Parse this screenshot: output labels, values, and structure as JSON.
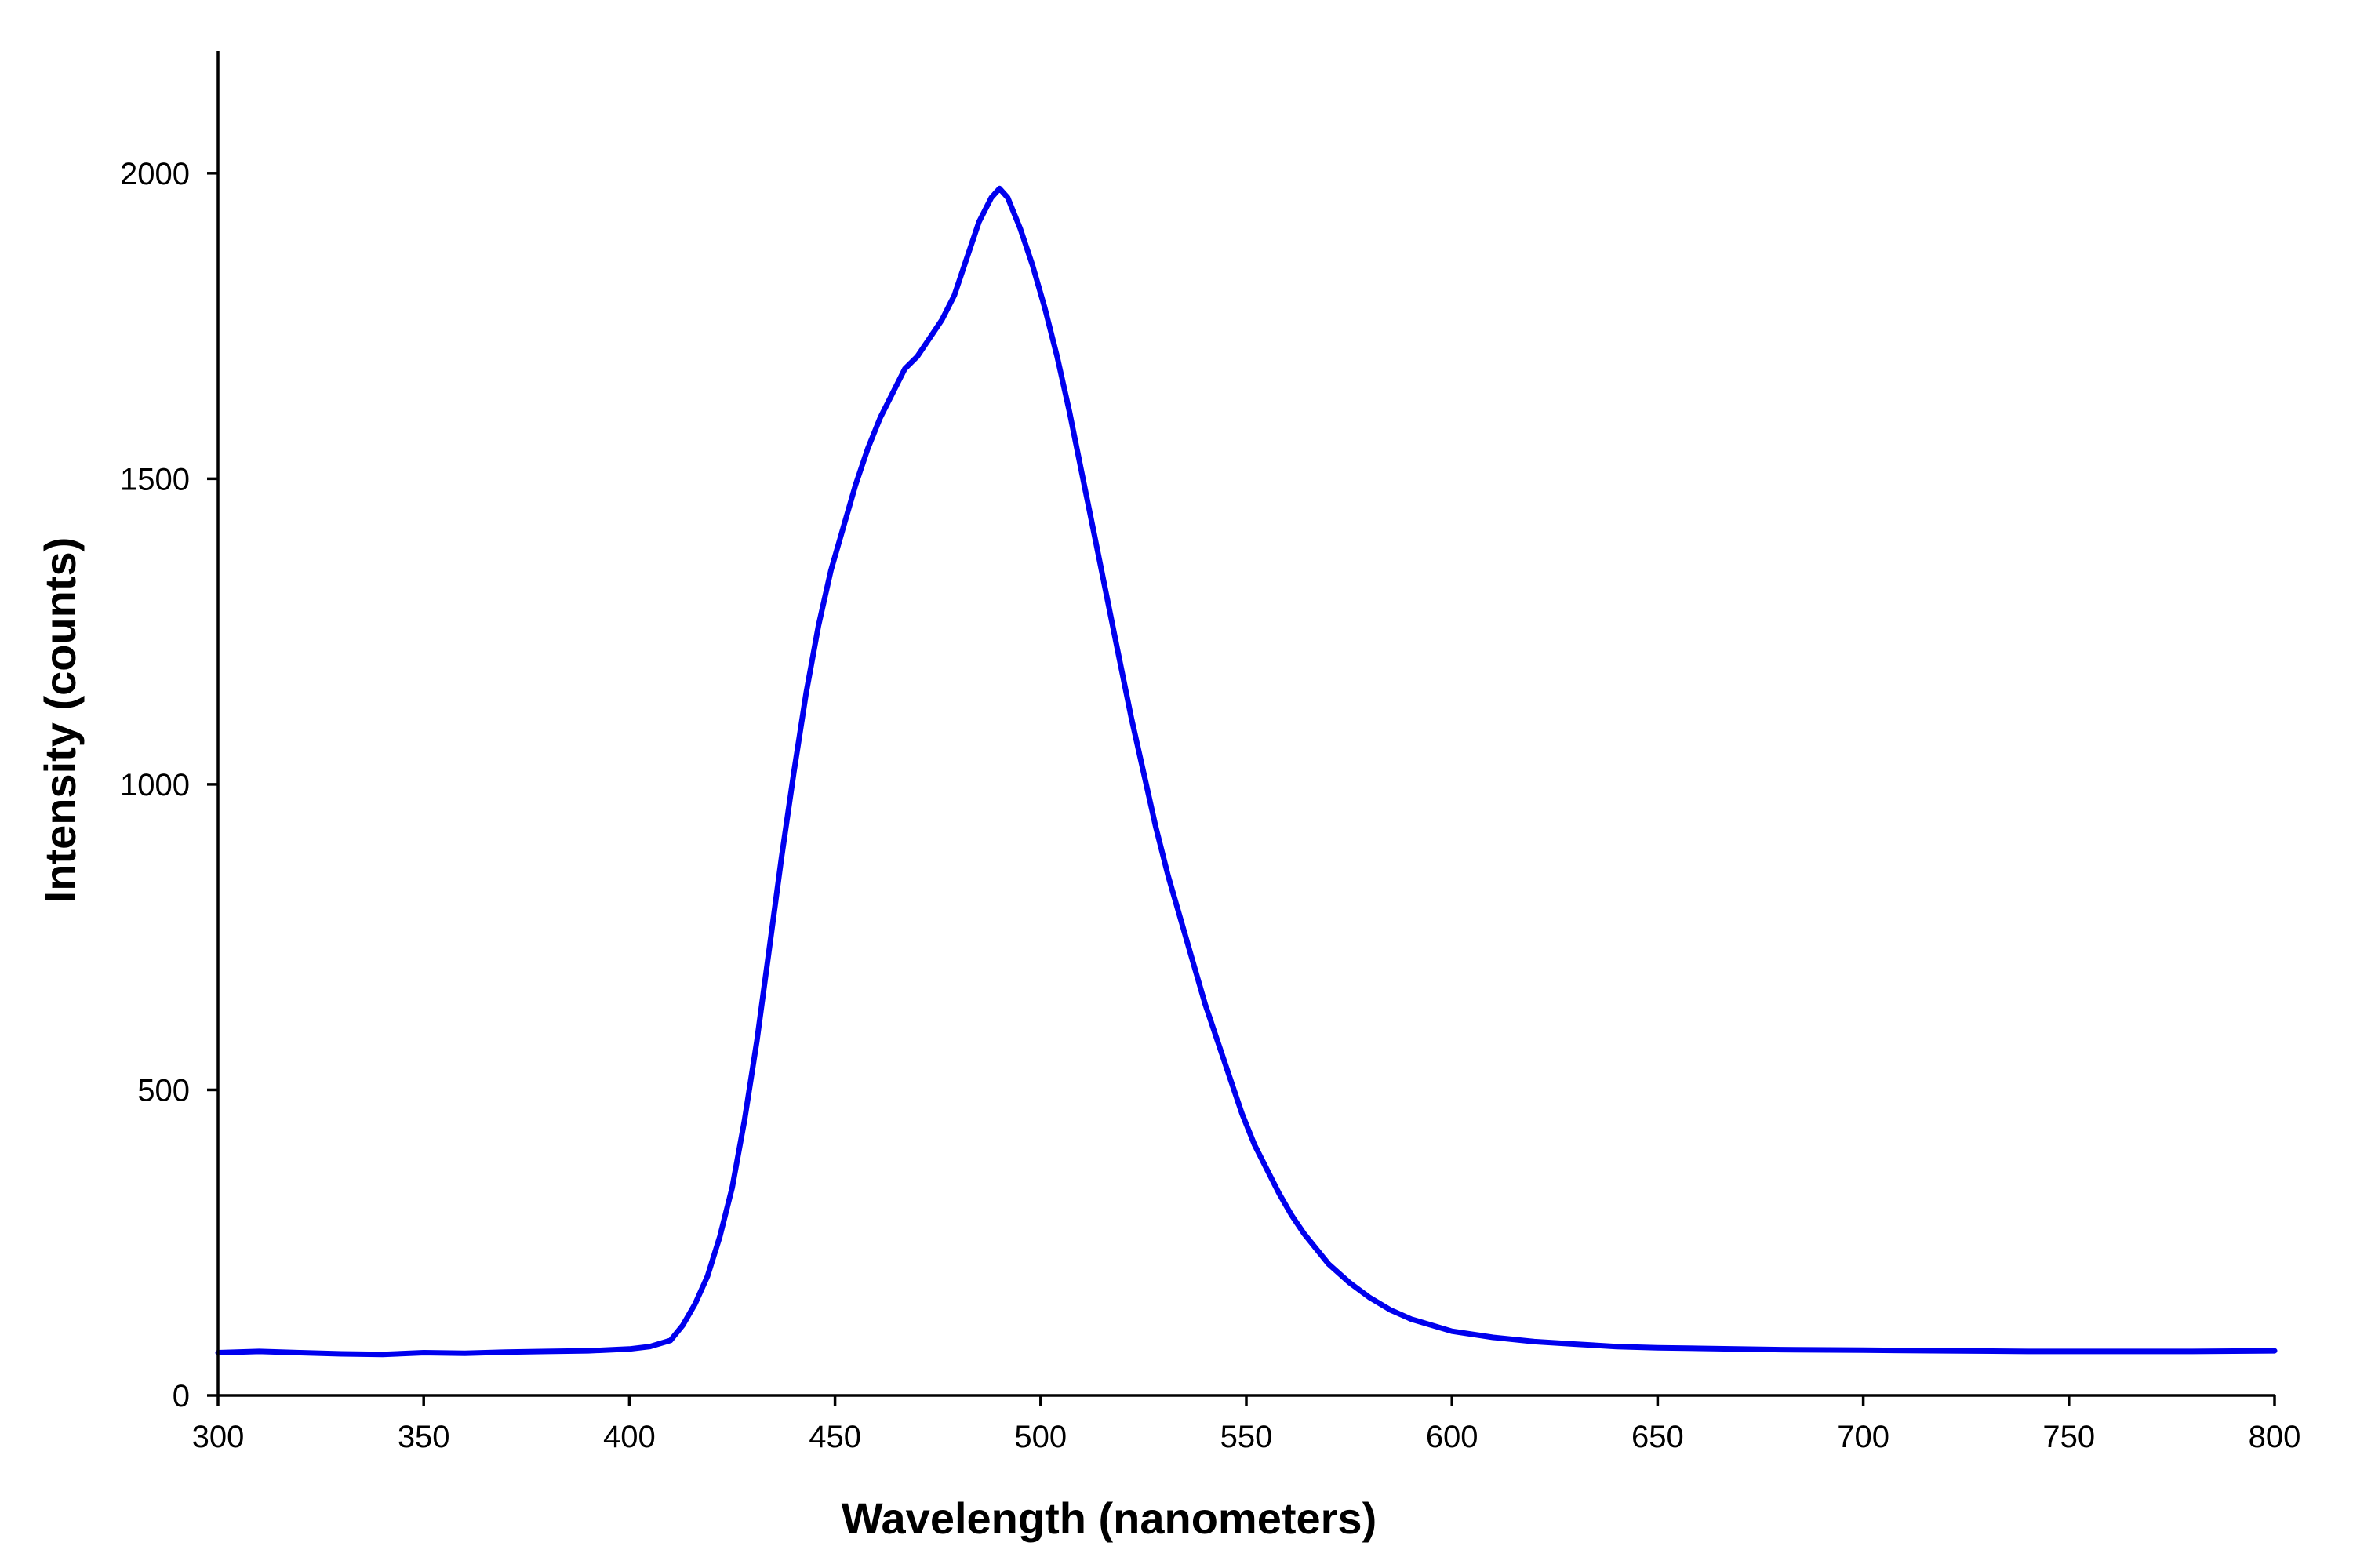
{
  "chart_data": {
    "type": "line",
    "title": "",
    "xlabel": "Wavelength (nanometers)",
    "ylabel": "Intensity (counts)",
    "xlim": [
      300,
      800
    ],
    "ylim": [
      0,
      2200
    ],
    "x_ticks": [
      300,
      350,
      400,
      450,
      500,
      550,
      600,
      650,
      700,
      750,
      800
    ],
    "y_ticks": [
      0,
      500,
      1000,
      1500,
      2000
    ],
    "grid": false,
    "legend": "none",
    "series": [
      {
        "color": "#0000ee",
        "x": [
          300,
          310,
          320,
          330,
          340,
          350,
          360,
          370,
          380,
          390,
          400,
          405,
          410,
          413,
          416,
          419,
          422,
          425,
          428,
          431,
          434,
          437,
          440,
          443,
          446,
          449,
          452,
          455,
          458,
          461,
          464,
          467,
          470,
          473,
          476,
          479,
          482,
          485,
          488,
          490,
          492,
          495,
          498,
          501,
          504,
          507,
          510,
          513,
          516,
          519,
          522,
          525,
          528,
          531,
          534,
          537,
          540,
          543,
          546,
          549,
          552,
          555,
          558,
          561,
          564,
          567,
          570,
          575,
          580,
          585,
          590,
          595,
          600,
          610,
          620,
          630,
          640,
          650,
          660,
          680,
          700,
          720,
          740,
          760,
          780,
          800
        ],
        "y": [
          70,
          72,
          70,
          68,
          67,
          70,
          69,
          71,
          72,
          73,
          76,
          80,
          90,
          115,
          150,
          195,
          260,
          340,
          450,
          580,
          730,
          880,
          1020,
          1150,
          1260,
          1350,
          1420,
          1490,
          1550,
          1600,
          1640,
          1680,
          1700,
          1730,
          1760,
          1800,
          1860,
          1920,
          1960,
          1975,
          1960,
          1910,
          1850,
          1780,
          1700,
          1610,
          1510,
          1410,
          1310,
          1210,
          1110,
          1020,
          930,
          850,
          780,
          710,
          640,
          580,
          520,
          460,
          410,
          370,
          330,
          295,
          265,
          240,
          215,
          185,
          160,
          140,
          125,
          115,
          105,
          95,
          88,
          84,
          80,
          78,
          77,
          75,
          74,
          73,
          72,
          72,
          72,
          73
        ]
      }
    ]
  }
}
